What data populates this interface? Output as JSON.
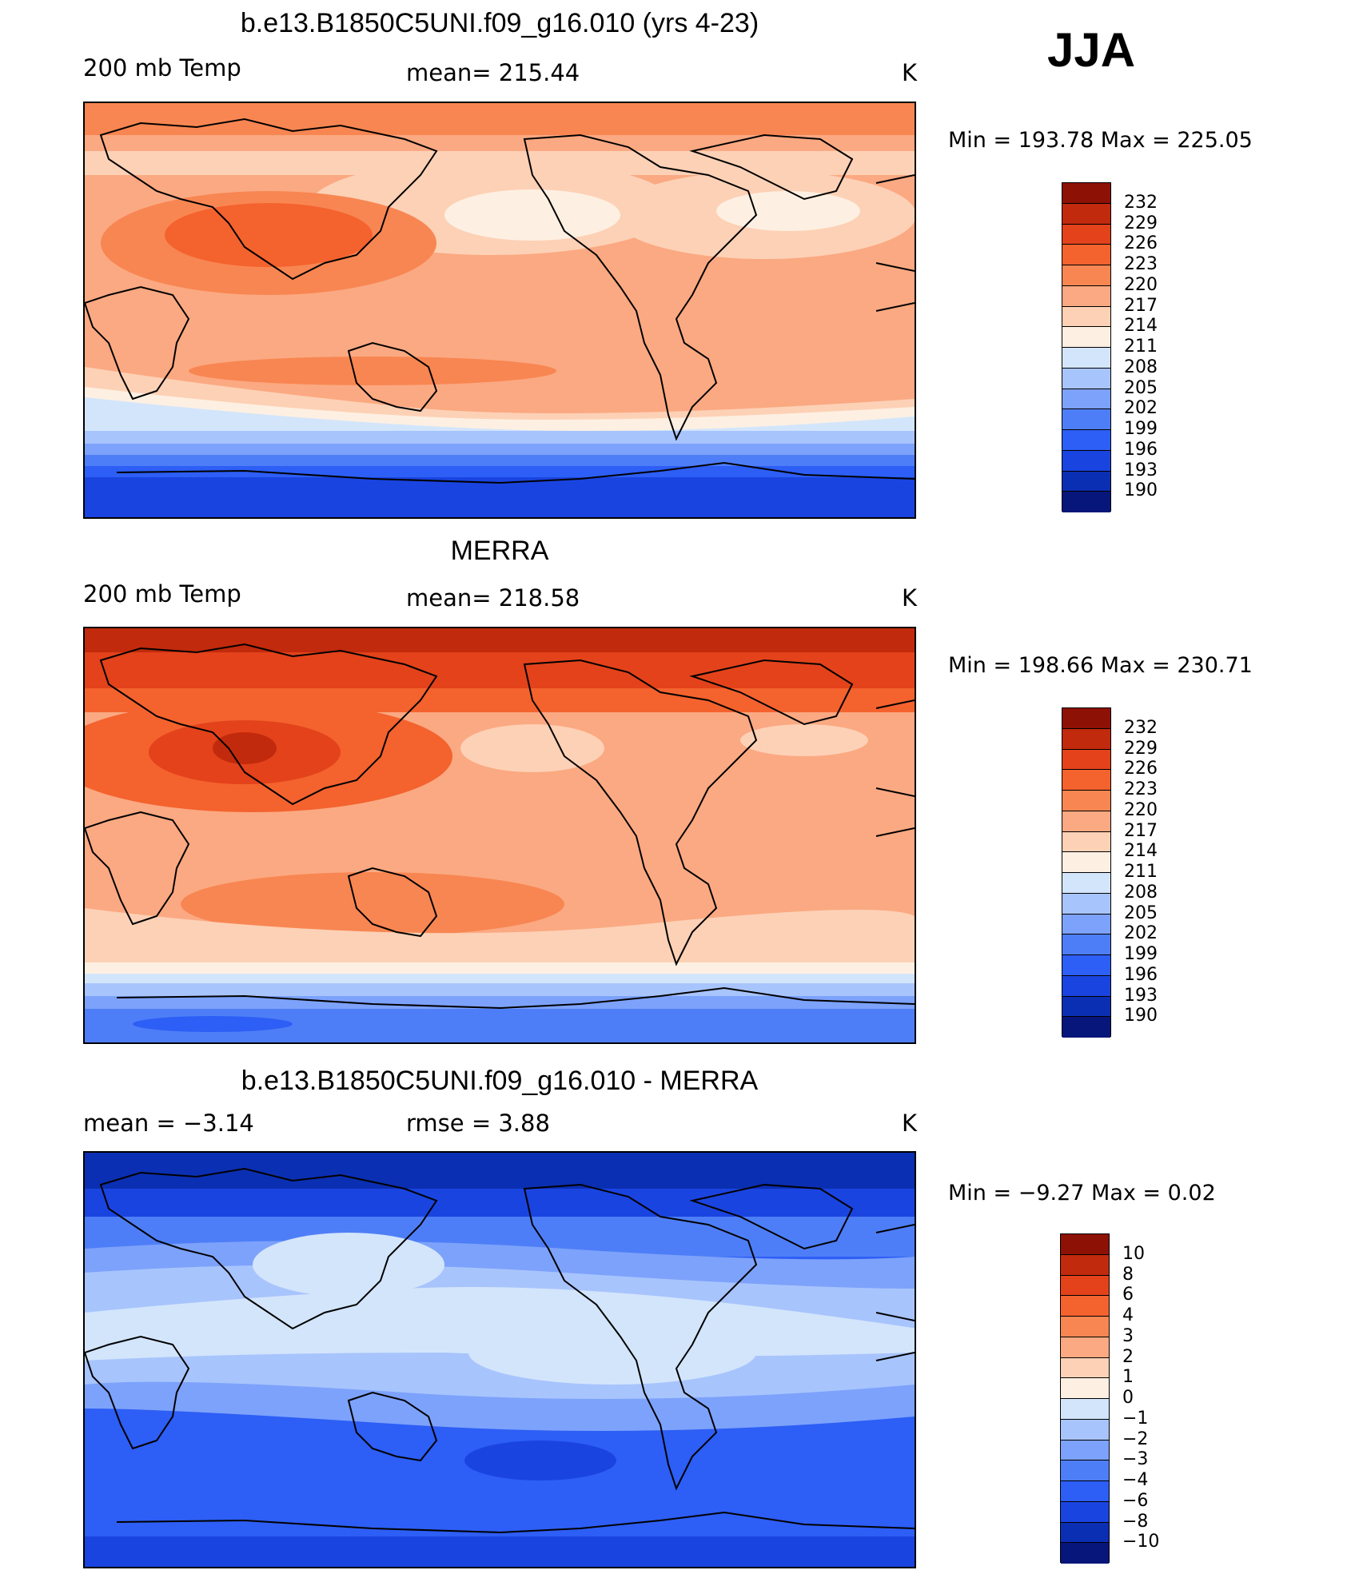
{
  "season": "JJA",
  "colors": {
    "temp_scale": [
      "#06167a",
      "#0b2fb2",
      "#1a44e0",
      "#2d5ef5",
      "#4e7ef7",
      "#7da2fb",
      "#a8c4fd",
      "#d3e5fb",
      "#fdf0e2",
      "#fdd1b6",
      "#fba982",
      "#f88652",
      "#f4622e",
      "#e3421b",
      "#c12a0c",
      "#8e1105"
    ],
    "diff_scale": [
      "#06167a",
      "#0b2fb2",
      "#1a44e0",
      "#2d5ef5",
      "#4e7ef7",
      "#7da2fb",
      "#a8c4fd",
      "#d3e5fb",
      "#fdf0e2",
      "#fdd1b6",
      "#fba982",
      "#f88652",
      "#f4622e",
      "#e3421b",
      "#c12a0c",
      "#8e1105"
    ]
  },
  "panels": [
    {
      "id": "model",
      "title": "b.e13.B1850C5UNI.f09_g16.010 (yrs 4-23)",
      "left_label": "200 mb Temp",
      "center_label": "mean=  215.44",
      "units": "K",
      "minmax": "Min  =  193.78  Max  =  225.05",
      "colorbar_labels": [
        "232",
        "229",
        "226",
        "223",
        "220",
        "217",
        "214",
        "211",
        "208",
        "205",
        "202",
        "199",
        "196",
        "193",
        "190"
      ]
    },
    {
      "id": "obs",
      "title": "MERRA",
      "left_label": "200 mb Temp",
      "center_label": "mean=  218.58",
      "units": "K",
      "minmax": "Min  =  198.66  Max  =  230.71",
      "colorbar_labels": [
        "232",
        "229",
        "226",
        "223",
        "220",
        "217",
        "214",
        "211",
        "208",
        "205",
        "202",
        "199",
        "196",
        "193",
        "190"
      ]
    },
    {
      "id": "diff",
      "title": "b.e13.B1850C5UNI.f09_g16.010 - MERRA",
      "left_label": "mean  =    −3.14",
      "center_label": "rmse  =     3.88",
      "units": "K",
      "minmax": "Min  =    −9.27  Max  =      0.02",
      "colorbar_labels": [
        "10",
        "8",
        "6",
        "4",
        "3",
        "2",
        "1",
        "0",
        "−1",
        "−2",
        "−3",
        "−4",
        "−6",
        "−8",
        "−10"
      ]
    }
  ]
}
